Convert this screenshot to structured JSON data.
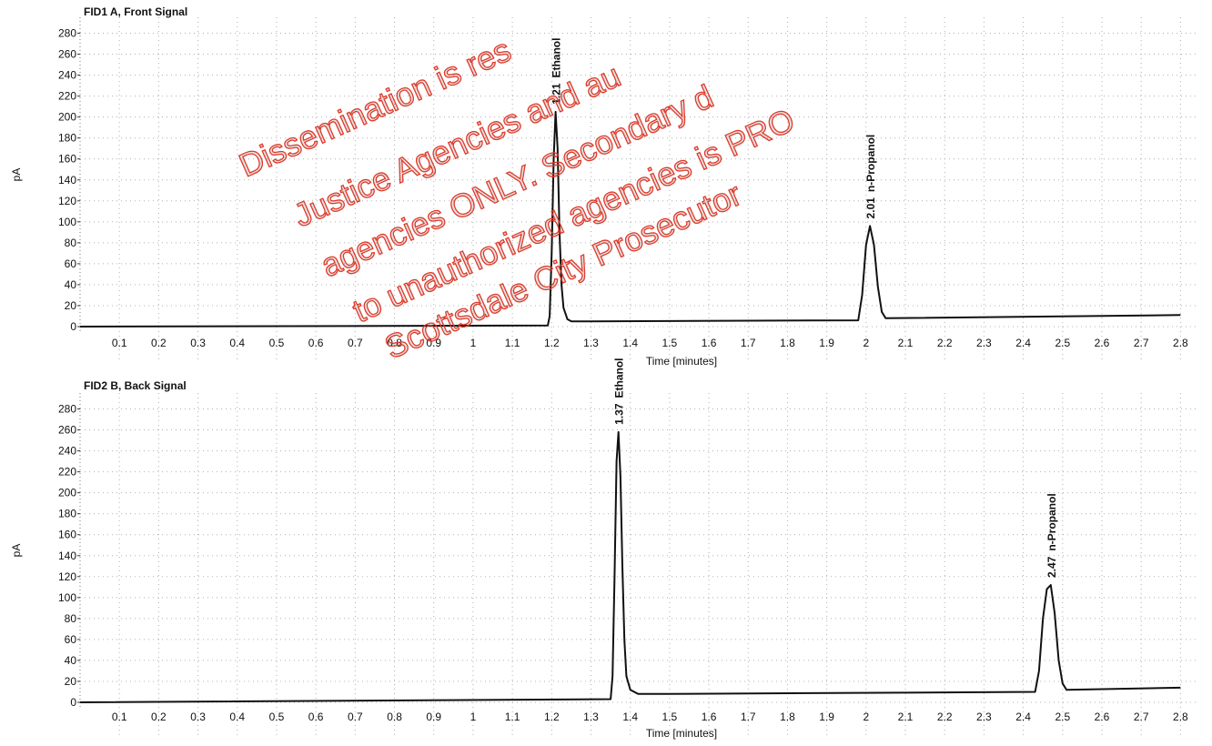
{
  "watermark": [
    "Dissemination is res",
    "Justice Agencies and au",
    "agencies ONLY. Secondary d",
    "to unauthorized agencies is PRO",
    "Scottsdale City Prosecutor"
  ],
  "colors": {
    "trace": "#111111",
    "grid": "#b0b0b0",
    "watermark": "#e03a2a"
  },
  "chart_data": [
    {
      "type": "line",
      "title": "FID1 A, Front Signal",
      "xlabel": "Time [minutes]",
      "ylabel": "pA",
      "xlim": [
        0,
        2.82
      ],
      "ylim": [
        0,
        290
      ],
      "x_ticks": [
        "0.1",
        "0.2",
        "0.3",
        "0.4",
        "0.5",
        "0.6",
        "0.7",
        "0.8",
        "0.9",
        "1",
        "1.1",
        "1.2",
        "1.3",
        "1.4",
        "1.5",
        "1.6",
        "1.7",
        "1.8",
        "1.9",
        "2",
        "2.1",
        "2.2",
        "2.3",
        "2.4",
        "2.5",
        "2.6",
        "2.7",
        "2.8"
      ],
      "y_ticks": [
        "0",
        "20",
        "40",
        "60",
        "80",
        "100",
        "120",
        "140",
        "160",
        "180",
        "200",
        "220",
        "240",
        "260",
        "280"
      ],
      "grid": "dotted",
      "series": [
        {
          "x": [
            0.0,
            1.19,
            1.195,
            1.2,
            1.205,
            1.21,
            1.215,
            1.22,
            1.225,
            1.23,
            1.24,
            1.25,
            1.3,
            1.98,
            1.99,
            2.0,
            2.01,
            2.02,
            2.03,
            2.04,
            2.05,
            2.8
          ],
          "y": [
            0,
            1,
            10,
            70,
            160,
            205,
            170,
            90,
            40,
            18,
            7,
            5,
            5,
            6,
            30,
            78,
            96,
            78,
            38,
            14,
            8,
            11
          ]
        }
      ],
      "peaks": [
        {
          "rt": "1.21",
          "name": "Ethanol",
          "x": 1.21,
          "y": 205
        },
        {
          "rt": "2.01",
          "name": "n-Propanol",
          "x": 2.01,
          "y": 96
        }
      ]
    },
    {
      "type": "line",
      "title": "FID2 B, Back Signal",
      "xlabel": "Time [minutes]",
      "ylabel": "pA",
      "xlim": [
        0,
        2.82
      ],
      "ylim": [
        0,
        290
      ],
      "x_ticks": [
        "0.1",
        "0.2",
        "0.3",
        "0.4",
        "0.5",
        "0.6",
        "0.7",
        "0.8",
        "0.9",
        "1",
        "1.1",
        "1.2",
        "1.3",
        "1.4",
        "1.5",
        "1.6",
        "1.7",
        "1.8",
        "1.9",
        "2",
        "2.1",
        "2.2",
        "2.3",
        "2.4",
        "2.5",
        "2.6",
        "2.7",
        "2.8"
      ],
      "y_ticks": [
        "0",
        "20",
        "40",
        "60",
        "80",
        "100",
        "120",
        "140",
        "160",
        "180",
        "200",
        "220",
        "240",
        "260",
        "280"
      ],
      "grid": "dotted",
      "series": [
        {
          "x": [
            0.0,
            1.35,
            1.355,
            1.36,
            1.365,
            1.37,
            1.375,
            1.38,
            1.385,
            1.39,
            1.4,
            1.42,
            1.5,
            2.43,
            2.44,
            2.45,
            2.46,
            2.47,
            2.48,
            2.49,
            2.5,
            2.51,
            2.8
          ],
          "y": [
            0,
            3,
            25,
            120,
            230,
            258,
            215,
            130,
            60,
            25,
            12,
            8,
            8,
            10,
            30,
            80,
            108,
            112,
            85,
            40,
            18,
            12,
            14
          ]
        }
      ],
      "peaks": [
        {
          "rt": "1.37",
          "name": "Ethanol",
          "x": 1.37,
          "y": 258
        },
        {
          "rt": "2.47",
          "name": "n-Propanol",
          "x": 2.47,
          "y": 112
        }
      ]
    }
  ]
}
